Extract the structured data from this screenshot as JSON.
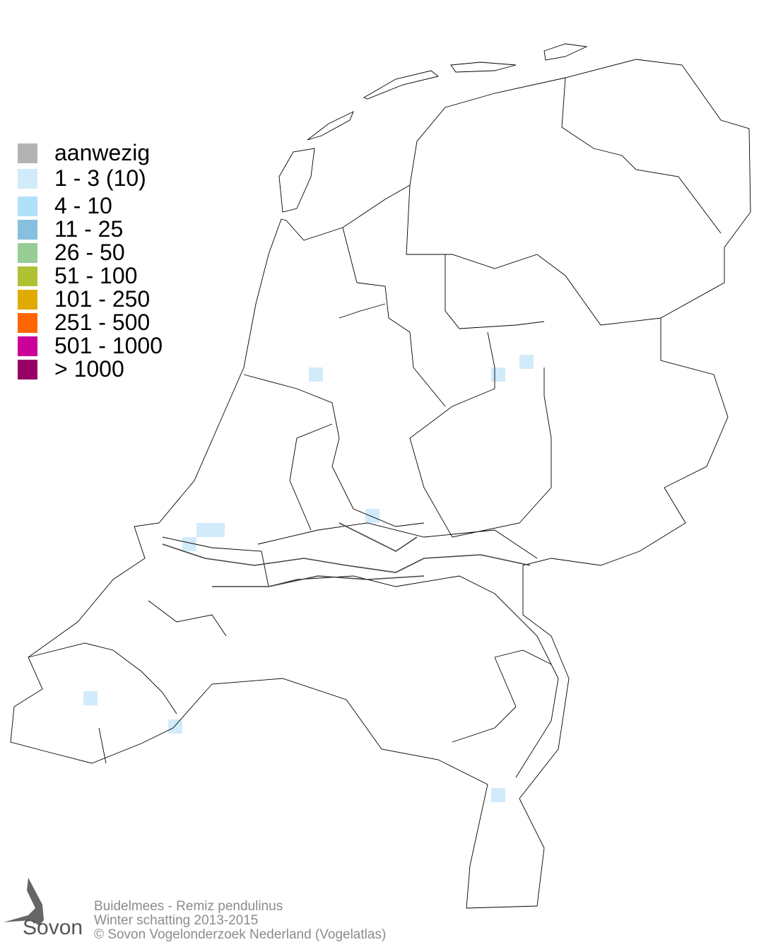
{
  "legend": [
    {
      "label": "aanwezig",
      "color": "#b3b3b3"
    },
    {
      "label": "1 - 3 (10)",
      "color": "#d2ebfa"
    },
    {
      "label": "4 - 10",
      "color": "#b1e1fa"
    },
    {
      "label": "11 - 25",
      "color": "#86c0de"
    },
    {
      "label": "26 - 50",
      "color": "#97cc95"
    },
    {
      "label": "51 - 100",
      "color": "#b0c234"
    },
    {
      "label": "101 - 250",
      "color": "#e0ab00"
    },
    {
      "label": "251 - 500",
      "color": "#ff6600"
    },
    {
      "label": "501 - 1000",
      "color": "#cc0099"
    },
    {
      "label": "> 1000",
      "color": "#990066"
    }
  ],
  "map": {
    "occupied_class": "1 - 3 (10)",
    "border_color": "#000000"
  },
  "footer": {
    "species": "Buidelmees - Remiz pendulinus",
    "period": "Winter schatting 2013-2015",
    "copyright": "© Sovon Vogelonderzoek Nederland (Vogelatlas)"
  },
  "logo": {
    "text": "Sovon"
  }
}
